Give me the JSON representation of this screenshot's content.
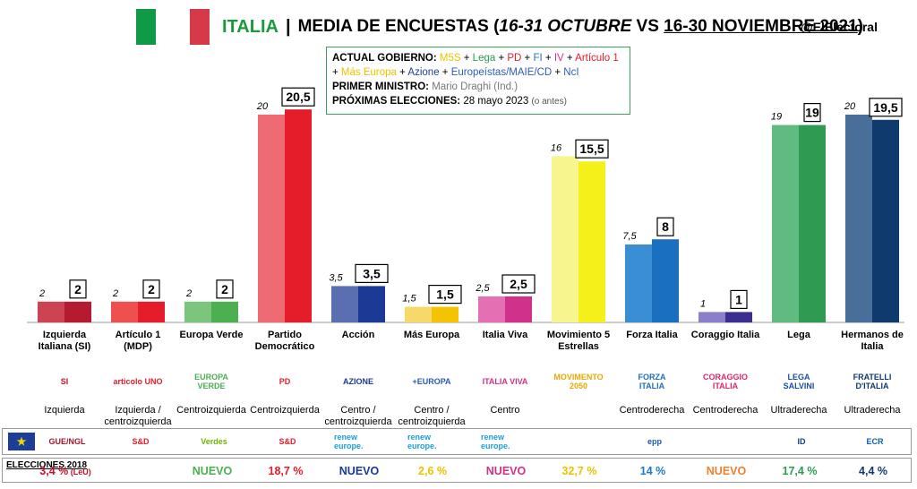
{
  "header": {
    "country": "ITALIA",
    "separator": "|",
    "title_prefix": "MEDIA DE ENCUESTAS (",
    "period_a": "16-31 OCTUBRE",
    "vs": " VS ",
    "period_b": "16-30 NOVIEMBRE 2021",
    "title_suffix": ")",
    "handle": "@ElElectoral"
  },
  "infobox": {
    "gov_label": "ACTUAL GOBIERNO:",
    "gov_parties": [
      {
        "name": "M5S",
        "color": "#e8c400"
      },
      {
        "name": "Lega",
        "color": "#2e9a52"
      },
      {
        "name": "PD",
        "color": "#e51c2a"
      },
      {
        "name": "FI",
        "color": "#1e78c8"
      },
      {
        "name": "IV",
        "color": "#d0318a"
      },
      {
        "name": "Artículo 1",
        "color": "#e51c2a"
      },
      {
        "name": "Más Europa",
        "color": "#f0c000"
      },
      {
        "name": "Azione",
        "color": "#1b3e96"
      },
      {
        "name": "Europeístas/MAIE/CD",
        "color": "#2b5db5"
      },
      {
        "name": "NcI",
        "color": "#2b5db5"
      }
    ],
    "pm_label": "PRIMER MINISTRO:",
    "pm_value": "Mario Draghi (Ind.)",
    "elect_label": "PRÓXIMAS ELECCIONES:",
    "elect_value": "28 mayo 2023",
    "elect_note": "(o antes)"
  },
  "chart_data": {
    "type": "bar",
    "title": "ITALIA | MEDIA DE ENCUESTAS (16-31 OCTUBRE VS 16-30 NOVIEMBRE 2021)",
    "categories": [
      "Izquierda Italiana (SI)",
      "Artículo 1 (MDP)",
      "Europa Verde",
      "Partido Democrático",
      "Acción",
      "Más Europa",
      "Italia Viva",
      "Movimiento 5 Estrellas",
      "Forza Italia",
      "Coraggio Italia",
      "Lega",
      "Hermanos de Italia"
    ],
    "series": [
      {
        "name": "16-31 octubre",
        "values": [
          2,
          2,
          2,
          20,
          3.5,
          1.5,
          2.5,
          16,
          7.5,
          1,
          19,
          20
        ]
      },
      {
        "name": "16-30 noviembre 2021",
        "values": [
          2,
          2,
          2,
          20.5,
          3.5,
          1.5,
          2.5,
          15.5,
          8,
          1,
          19,
          19.5
        ]
      }
    ],
    "labels_prev": [
      "2",
      "2",
      "2",
      "20",
      "3,5",
      "1,5",
      "2,5",
      "16",
      "7,5",
      "1",
      "19",
      "20"
    ],
    "labels_curr": [
      "2",
      "2",
      "2",
      "20,5",
      "3,5",
      "1,5",
      "2,5",
      "15,5",
      "8",
      "1",
      "19",
      "19,5"
    ],
    "colors_prev": [
      "#cc4452",
      "#ee5050",
      "#7cc57c",
      "#ef6b73",
      "#5a6fb0",
      "#f7d96a",
      "#e56fb3",
      "#f6f58e",
      "#3a8fd4",
      "#8a7fc8",
      "#5fbb80",
      "#4a6e9a"
    ],
    "colors_curr": [
      "#b51a30",
      "#e51c2a",
      "#4caf50",
      "#e51c2a",
      "#1b3a96",
      "#f5c400",
      "#d0318a",
      "#f5f01a",
      "#1a6fc0",
      "#3a2f90",
      "#2e9a52",
      "#0f3a6e"
    ],
    "ylim": [
      0,
      21
    ]
  },
  "parties": [
    {
      "name": "Izquierda Italiana (SI)",
      "logo": "SI",
      "logo_color": "#c8102e",
      "ideology": "Izquierda",
      "eu_group": "GUE/NGL",
      "eu_color": "#a0182a",
      "result_2018": "3,4 %",
      "result_note": "(LeU)",
      "result_color": "#c8102e"
    },
    {
      "name": "Artículo 1 (MDP)",
      "logo": "articolo UNO",
      "logo_color": "#e51c2a",
      "ideology": "Izquierda / centroizquierda",
      "eu_group": "S&D",
      "eu_color": "#e51c2a",
      "result_2018": "",
      "result_note": "",
      "result_color": "#000"
    },
    {
      "name": "Europa Verde",
      "logo": "EUROPA VERDE",
      "logo_color": "#4caf50",
      "ideology": "Centroizquierda",
      "eu_group": "Verdes",
      "eu_color": "#6bb700",
      "result_2018": "NUEVO",
      "result_note": "",
      "result_color": "#4caf50"
    },
    {
      "name": "Partido Democrático",
      "logo": "PD",
      "logo_color": "#e51c2a",
      "ideology": "Centroizquierda",
      "eu_group": "S&D",
      "eu_color": "#e51c2a",
      "result_2018": "18,7 %",
      "result_note": "",
      "result_color": "#e51c2a"
    },
    {
      "name": "Acción",
      "logo": "AZIONE",
      "logo_color": "#1b3a96",
      "ideology": "Centro / centroizquierda",
      "eu_group": "renew europe.",
      "eu_color": "#1aa0d8",
      "result_2018": "NUEVO",
      "result_note": "",
      "result_color": "#1b3a96"
    },
    {
      "name": "Más Europa",
      "logo": "+EUROPA",
      "logo_color": "#2b5db5",
      "ideology": "Centro / centroizquierda",
      "eu_group": "renew europe.",
      "eu_color": "#1aa0d8",
      "result_2018": "2,6 %",
      "result_note": "",
      "result_color": "#f0c000"
    },
    {
      "name": "Italia Viva",
      "logo": "ITALIA VIVA",
      "logo_color": "#d0318a",
      "ideology": "Centro",
      "eu_group": "renew europe.",
      "eu_color": "#1aa0d8",
      "result_2018": "NUEVO",
      "result_note": "",
      "result_color": "#d0318a"
    },
    {
      "name": "Movimiento 5 Estrellas",
      "logo": "MOVIMENTO 2050",
      "logo_color": "#e8a800",
      "ideology": "",
      "eu_group": "",
      "eu_color": "#000",
      "result_2018": "32,7 %",
      "result_note": "",
      "result_color": "#e8c400"
    },
    {
      "name": "Forza Italia",
      "logo": "FORZA ITALIA",
      "logo_color": "#1e6fc0",
      "ideology": "Centroderecha",
      "eu_group": "epp",
      "eu_color": "#1a5ab0",
      "result_2018": "14 %",
      "result_note": "",
      "result_color": "#1e78c8"
    },
    {
      "name": "Coraggio Italia",
      "logo": "CORAGGIO ITALIA",
      "logo_color": "#e0256b",
      "ideology": "Centroderecha",
      "eu_group": "",
      "eu_color": "#000",
      "result_2018": "NUEVO",
      "result_note": "",
      "result_color": "#f08030"
    },
    {
      "name": "Lega",
      "logo": "LEGA SALVINI",
      "logo_color": "#1a4fa0",
      "ideology": "Ultraderecha",
      "eu_group": "ID",
      "eu_color": "#1a3c8a",
      "result_2018": "17,4 %",
      "result_note": "",
      "result_color": "#2e9a52"
    },
    {
      "name": "Hermanos de Italia",
      "logo": "FRATELLI D'ITALIA",
      "logo_color": "#0f3a6e",
      "ideology": "Ultraderecha",
      "eu_group": "ECR",
      "eu_color": "#0f5ea8",
      "result_2018": "4,4 %",
      "result_note": "",
      "result_color": "#0f3a6e"
    }
  ],
  "elections_label": "ELECCIONES 2018"
}
